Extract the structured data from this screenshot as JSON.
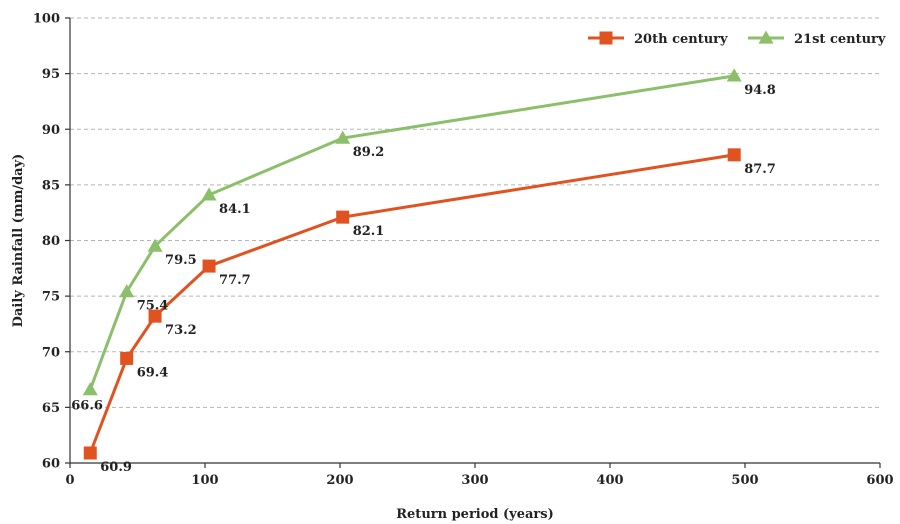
{
  "chart_data": {
    "type": "line",
    "xlabel": "Return period (years)",
    "ylabel": "Daily Rainfall (mm/day)",
    "xlim": [
      0,
      600
    ],
    "ylim": [
      60,
      100
    ],
    "xticks": [
      0,
      100,
      200,
      300,
      400,
      500,
      600
    ],
    "yticks": [
      60,
      65,
      70,
      75,
      80,
      85,
      90,
      95,
      100
    ],
    "grid": "horizontal dashed",
    "legend": "top-right",
    "series": [
      {
        "name": "20th century",
        "color": "#e0521f",
        "marker": "square",
        "x": [
          15,
          42,
          63,
          103,
          202,
          492
        ],
        "y": [
          60.9,
          69.4,
          73.2,
          77.7,
          82.1,
          87.7
        ],
        "labels": [
          "60.9",
          "69.4",
          "73.2",
          "77.7",
          "82.1",
          "87.7"
        ]
      },
      {
        "name": "21st century",
        "color": "#8cbf6a",
        "marker": "triangle",
        "x": [
          15,
          42,
          63,
          103,
          202,
          492
        ],
        "y": [
          66.6,
          75.4,
          79.5,
          84.1,
          89.2,
          94.8
        ],
        "labels": [
          "66.6",
          "75.4",
          "79.5",
          "84.1",
          "89.2",
          "94.8"
        ]
      }
    ]
  }
}
